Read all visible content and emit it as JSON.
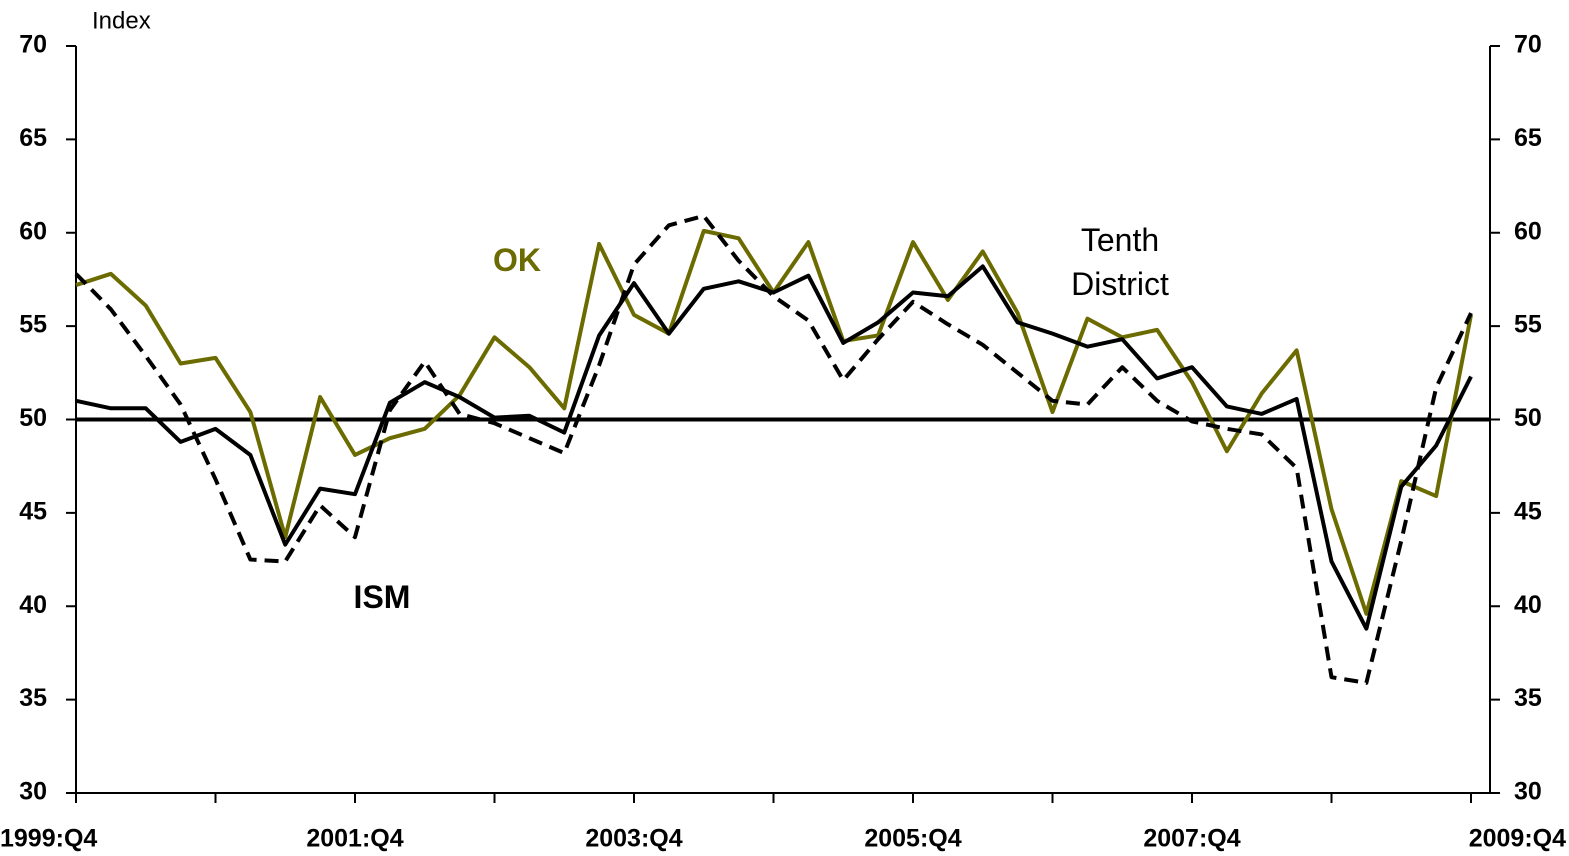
{
  "chart_data": {
    "type": "line",
    "y_label": "Index",
    "categories": [
      "1999:Q4",
      null,
      null,
      null,
      null,
      null,
      null,
      null,
      "2001:Q4",
      null,
      null,
      null,
      null,
      null,
      null,
      null,
      "2003:Q4",
      null,
      null,
      null,
      null,
      null,
      null,
      null,
      "2005:Q4",
      null,
      null,
      null,
      null,
      null,
      null,
      null,
      "2007:Q4",
      null,
      null,
      null,
      null,
      null,
      null,
      null,
      "2009:Q4"
    ],
    "series": [
      {
        "name": "OK",
        "color": "#6b6b00",
        "dashed": false,
        "values": [
          57.2,
          57.8,
          56.1,
          53.0,
          53.3,
          50.4,
          43.7,
          51.2,
          48.1,
          49.0,
          49.5,
          51.3,
          54.4,
          52.8,
          50.6,
          59.4,
          55.6,
          54.6,
          60.1,
          59.7,
          56.8,
          59.5,
          54.2,
          54.5,
          59.5,
          56.4,
          59.0,
          55.7,
          50.4,
          55.4,
          54.4,
          54.8,
          52.0,
          48.3,
          51.4,
          53.7,
          45.2,
          39.6,
          46.7,
          45.9,
          55.6
        ]
      },
      {
        "name": "Tenth District",
        "color": "#000000",
        "dashed": false,
        "values": [
          51.0,
          50.6,
          50.6,
          48.8,
          49.5,
          48.1,
          43.3,
          46.3,
          46.0,
          50.9,
          52.0,
          51.2,
          50.1,
          50.2,
          49.3,
          54.5,
          57.3,
          54.6,
          57.0,
          57.4,
          56.8,
          57.7,
          54.1,
          55.2,
          56.8,
          56.6,
          58.2,
          55.2,
          54.6,
          53.9,
          54.3,
          52.2,
          52.8,
          50.7,
          50.3,
          51.1,
          42.4,
          38.8,
          46.4,
          48.6,
          52.3
        ]
      },
      {
        "name": "ISM",
        "color": "#000000",
        "dashed": true,
        "values": [
          57.8,
          55.9,
          53.4,
          50.8,
          46.8,
          42.5,
          42.4,
          45.4,
          43.7,
          50.5,
          53.1,
          50.3,
          49.8,
          49.0,
          48.2,
          52.9,
          58.3,
          60.4,
          60.9,
          58.5,
          56.6,
          55.3,
          52.1,
          54.3,
          56.3,
          55.1,
          54.0,
          52.5,
          51.0,
          50.8,
          52.8,
          51.0,
          49.9,
          49.5,
          49.2,
          47.4,
          36.2,
          35.9,
          43.5,
          51.7,
          55.7
        ]
      }
    ],
    "ylim": [
      30,
      70
    ],
    "yticks": [
      30,
      35,
      40,
      45,
      50,
      55,
      60,
      65,
      70
    ],
    "y2lim": [
      30,
      70
    ],
    "y2ticks": [
      30,
      35,
      40,
      45,
      50,
      55,
      60,
      65,
      70
    ],
    "reference_line": 50,
    "grid": false
  }
}
